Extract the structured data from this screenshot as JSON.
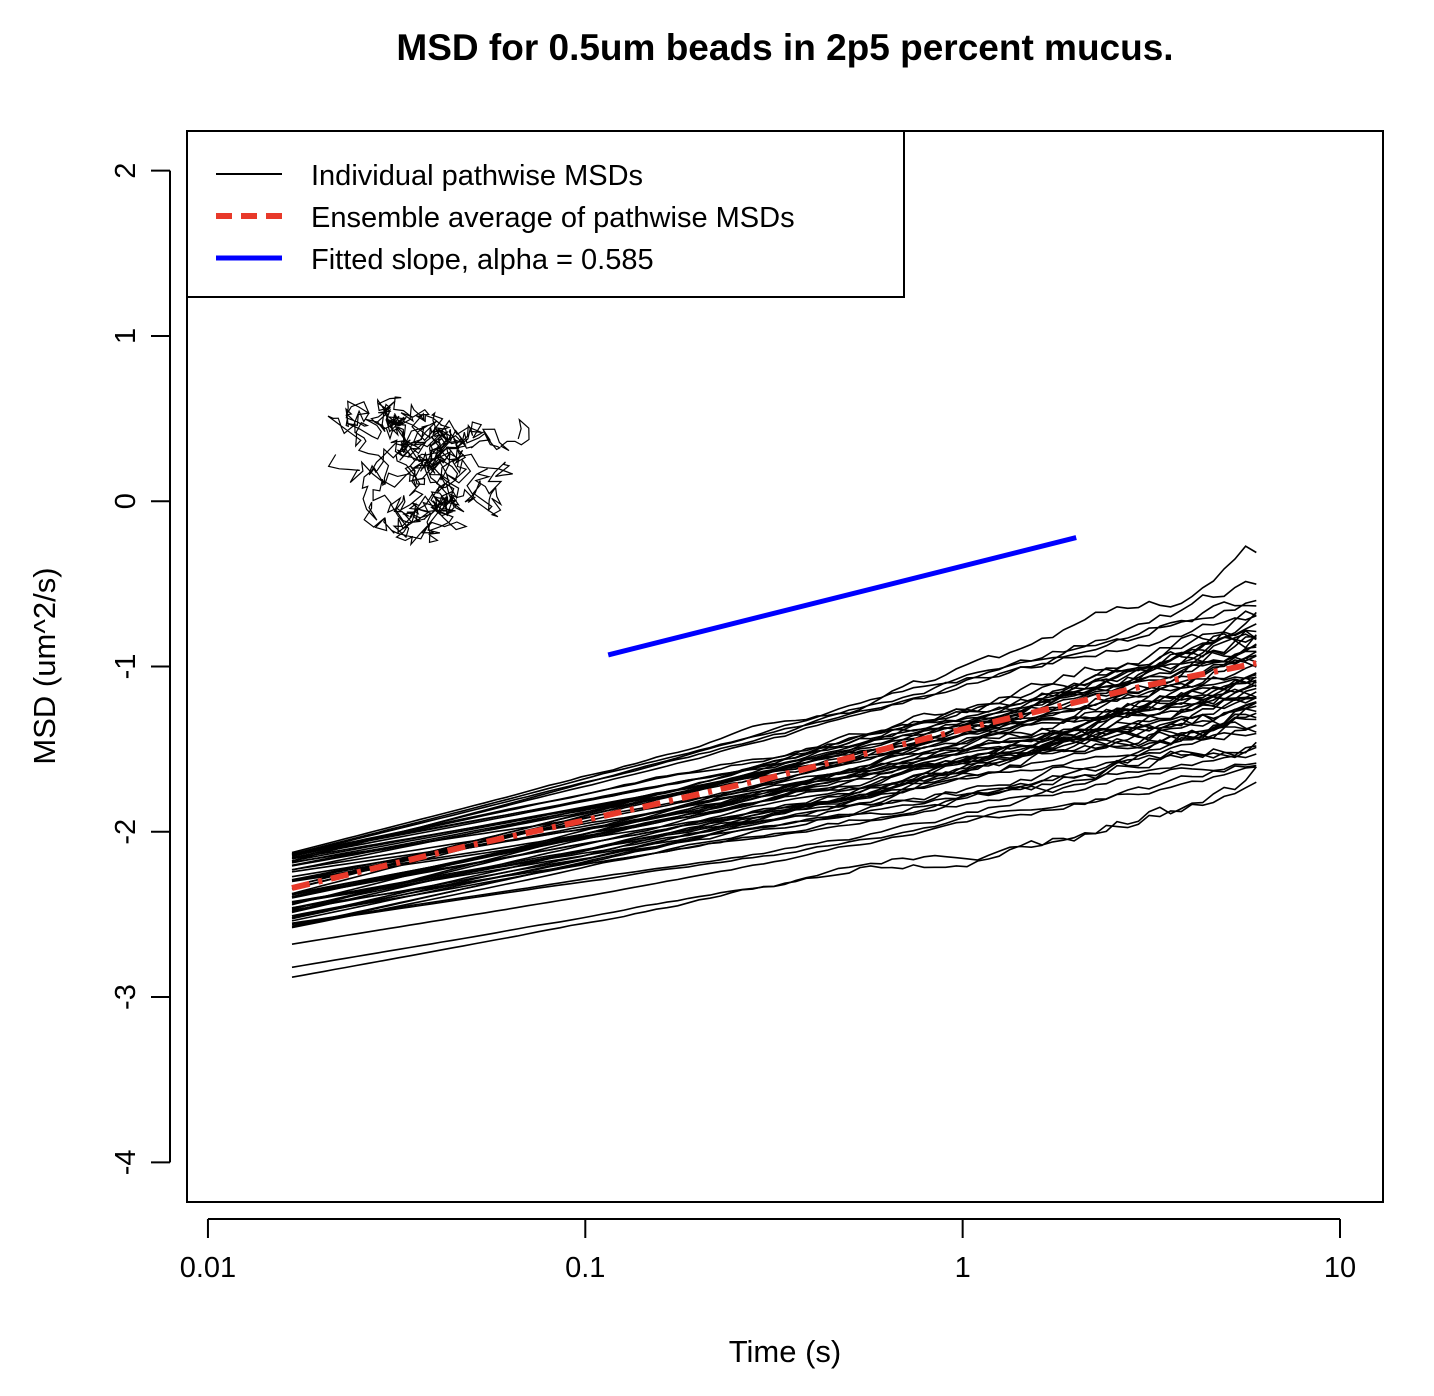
{
  "chart_data": {
    "type": "line",
    "title": "MSD for 0.5um beads in 2p5 percent mucus.",
    "xlabel": "Time (s)",
    "ylabel": "MSD (um^2/s)",
    "x_scale": "log10",
    "xlim": [
      0.0088,
      13
    ],
    "ylim": [
      -4.24,
      2.24
    ],
    "x_ticks": [
      0.01,
      0.1,
      1,
      10
    ],
    "x_tick_labels": [
      "0.01",
      "0.1",
      "1",
      "10"
    ],
    "y_ticks": [
      -4,
      -3,
      -2,
      -1,
      0,
      1,
      2
    ],
    "y_tick_labels": [
      "-4",
      "-3",
      "-2",
      "-1",
      "0",
      "1",
      "2"
    ],
    "legend_position": "top-left",
    "legend": [
      {
        "label": "Individual pathwise MSDs",
        "color": "#000000",
        "style": "solid-thin"
      },
      {
        "label": "Ensemble average of pathwise MSDs",
        "color": "#e8392a",
        "style": "dashed-thick"
      },
      {
        "label": "Fitted slope, alpha = 0.585",
        "color": "#0000ff",
        "style": "solid-thick"
      }
    ],
    "series": [
      {
        "name": "Ensemble average of pathwise MSDs",
        "color": "#e8392a",
        "x": [
          0.0167,
          0.05,
          0.1,
          0.3,
          1,
          3,
          6
        ],
        "y": [
          -2.34,
          -2.08,
          -1.93,
          -1.68,
          -1.38,
          -1.12,
          -0.98
        ]
      },
      {
        "name": "Fitted slope, alpha = 0.585",
        "color": "#0000ff",
        "x": [
          0.115,
          2.0
        ],
        "y": [
          -0.93,
          -0.22
        ]
      }
    ],
    "individual_paths": {
      "count": 60,
      "x_start": 0.0167,
      "x_end": 6,
      "y_start_range": [
        -2.88,
        -2.12
      ],
      "y_end_range": [
        -1.93,
        -0.02
      ],
      "color": "#000000"
    },
    "inset": {
      "description_icon": "random-walk-trajectory-icon",
      "color": "#000000"
    }
  }
}
